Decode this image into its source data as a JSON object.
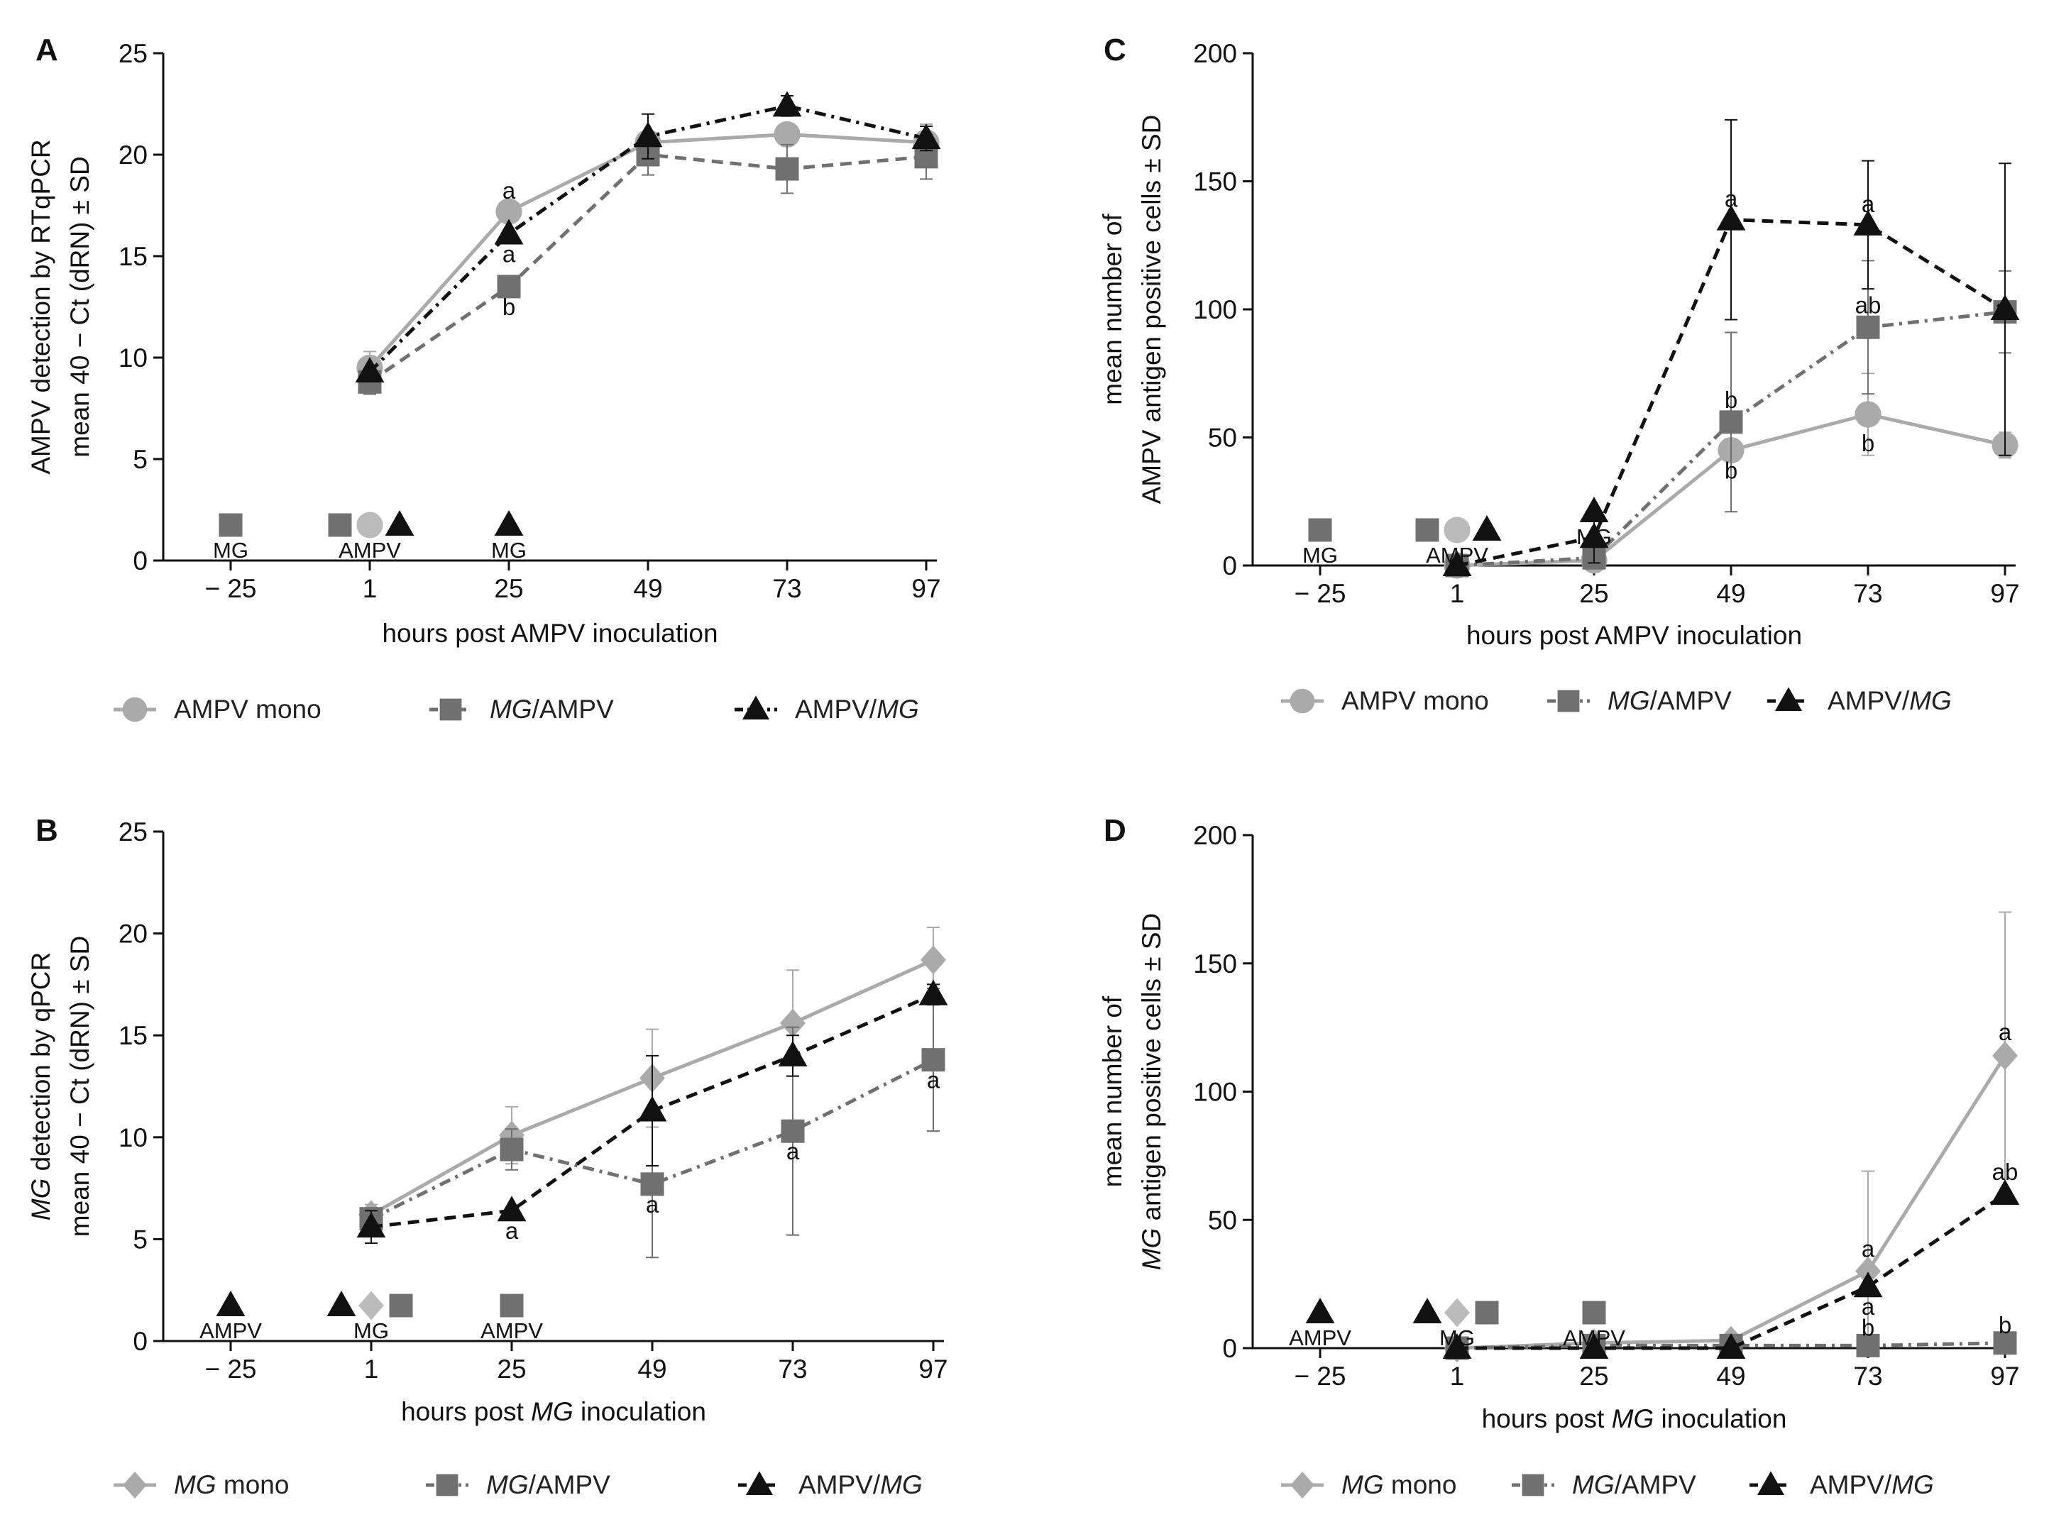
{
  "colors": {
    "mono": "#aaaaaa",
    "mg_ampv": "#707070",
    "ampv_mg": "#111111",
    "axis": "#111111"
  },
  "chart_data": [
    {
      "type": "line",
      "panel": "A",
      "xlabel": "hours post AMPV inoculation",
      "ylabel": [
        "AMPV detection by RTqPCR",
        "mean 40 − Ct (dRN) ± SD"
      ],
      "x_ticks": [
        "− 25",
        "1",
        "25",
        "49",
        "73",
        "97"
      ],
      "y_ticks": [
        "0",
        "5",
        "10",
        "15",
        "20",
        "25"
      ],
      "ylim": [
        0,
        25
      ],
      "grid": false,
      "legend_position": "bottom",
      "series": [
        {
          "name": "AMPV mono",
          "style": "solid",
          "marker": "circle",
          "color": "#aaaaaa",
          "x": [
            1,
            25,
            49,
            73,
            97
          ],
          "y": [
            9.5,
            17.2,
            20.6,
            21.0,
            20.6
          ],
          "err": [
            0.8,
            0,
            0.4,
            0.5,
            0.9
          ]
        },
        {
          "name": "MG/AMPV",
          "style": "dashed",
          "marker": "square",
          "color": "#707070",
          "x": [
            1,
            25,
            49,
            73,
            97
          ],
          "y": [
            8.8,
            13.5,
            20.0,
            19.3,
            19.9
          ],
          "err": [
            0.6,
            0,
            1.0,
            1.2,
            1.1
          ]
        },
        {
          "name": "AMPV/MG",
          "style": "dashdot",
          "marker": "triangle",
          "color": "#111111",
          "x": [
            1,
            25,
            49,
            73,
            97
          ],
          "y": [
            9.3,
            16.1,
            20.9,
            22.4,
            20.8
          ],
          "err": [
            0,
            0,
            1.1,
            0.5,
            0.6
          ]
        }
      ],
      "annotations": [
        {
          "x": 25,
          "y": 17.2,
          "text": "a",
          "dy": -18
        },
        {
          "x": 25,
          "y": 16.1,
          "text": "a",
          "dy": 40
        },
        {
          "x": 25,
          "y": 13.5,
          "text": "b",
          "dy": 40
        }
      ],
      "inoculation_markers": [
        {
          "x": -25,
          "shapes": [
            {
              "type": "square",
              "color": "#707070"
            }
          ],
          "label": "MG"
        },
        {
          "x": 1,
          "shapes": [
            {
              "type": "square",
              "color": "#707070"
            },
            {
              "type": "circle",
              "color": "#bbbbbb"
            },
            {
              "type": "triangle",
              "color": "#111111"
            }
          ],
          "label": "AMPV"
        },
        {
          "x": 25,
          "shapes": [
            {
              "type": "triangle",
              "color": "#111111"
            }
          ],
          "label": "MG"
        }
      ],
      "legend": [
        {
          "text": "AMPV mono",
          "italic": false
        },
        {
          "text": "MG",
          "italic": true,
          "rest": "/AMPV"
        },
        {
          "text": "AMPV/",
          "italic": false,
          "rest": "MG",
          "rest_italic": true
        }
      ]
    },
    {
      "type": "line",
      "panel": "B",
      "xlabel": "hours post MG inoculation",
      "ylabel": [
        "MG detection by qPCR",
        "mean 40 − Ct (dRN) ± SD"
      ],
      "x_ticks": [
        "− 25",
        "1",
        "25",
        "49",
        "73",
        "97"
      ],
      "y_ticks": [
        "0",
        "5",
        "10",
        "15",
        "20",
        "25"
      ],
      "ylim": [
        0,
        25
      ],
      "grid": false,
      "legend_position": "bottom",
      "series": [
        {
          "name": "MG mono",
          "style": "solid",
          "marker": "diamond",
          "color": "#aaaaaa",
          "x": [
            1,
            25,
            49,
            73,
            97
          ],
          "y": [
            6.2,
            10.1,
            12.9,
            15.6,
            18.7
          ],
          "err": [
            0.5,
            1.4,
            2.4,
            2.6,
            1.6
          ]
        },
        {
          "name": "MG/AMPV",
          "style": "dashdot",
          "marker": "square",
          "color": "#707070",
          "x": [
            1,
            25,
            49,
            73,
            97
          ],
          "y": [
            6.0,
            9.4,
            7.7,
            10.3,
            13.8
          ],
          "err": [
            0.4,
            1.0,
            3.6,
            5.1,
            3.5
          ]
        },
        {
          "name": "AMPV/MG",
          "style": "dashed",
          "marker": "triangle",
          "color": "#111111",
          "x": [
            1,
            25,
            49,
            73,
            97
          ],
          "y": [
            5.6,
            6.4,
            11.3,
            14.0,
            17.0
          ],
          "err": [
            0.8,
            0,
            2.7,
            1.0,
            0.5
          ]
        }
      ],
      "annotations": [
        {
          "x": 25,
          "y": 6.4,
          "text": "a",
          "dy": 40
        },
        {
          "x": 49,
          "y": 7.7,
          "text": "a",
          "dy": 40
        },
        {
          "x": 73,
          "y": 10.3,
          "text": "a",
          "dy": 40
        },
        {
          "x": 97,
          "y": 13.8,
          "text": "a",
          "dy": 40
        }
      ],
      "inoculation_markers": [
        {
          "x": -25,
          "shapes": [
            {
              "type": "triangle",
              "color": "#111111"
            }
          ],
          "label": "AMPV"
        },
        {
          "x": 1,
          "shapes": [
            {
              "type": "triangle",
              "color": "#111111"
            },
            {
              "type": "diamond",
              "color": "#bbbbbb"
            },
            {
              "type": "square",
              "color": "#707070"
            }
          ],
          "label": "MG"
        },
        {
          "x": 25,
          "shapes": [
            {
              "type": "square",
              "color": "#707070"
            }
          ],
          "label": "AMPV"
        }
      ],
      "legend": [
        {
          "text": "MG",
          "italic": true,
          "rest": " mono"
        },
        {
          "text": "MG",
          "italic": true,
          "rest": "/AMPV"
        },
        {
          "text": "AMPV/",
          "italic": false,
          "rest": "MG",
          "rest_italic": true
        }
      ]
    },
    {
      "type": "line",
      "panel": "C",
      "xlabel": "hours post AMPV inoculation",
      "ylabel": [
        "mean number of",
        "AMPV antigen positive cells ± SD"
      ],
      "x_ticks": [
        "− 25",
        "1",
        "25",
        "49",
        "73",
        "97"
      ],
      "y_ticks": [
        "0",
        "50",
        "100",
        "150",
        "200"
      ],
      "ylim": [
        0,
        200
      ],
      "grid": false,
      "legend_position": "bottom",
      "series": [
        {
          "name": "AMPV mono",
          "style": "solid",
          "marker": "circle",
          "color": "#aaaaaa",
          "x": [
            1,
            25,
            49,
            73,
            97
          ],
          "y": [
            0,
            2,
            45,
            59,
            47
          ],
          "err": [
            0,
            0,
            0,
            16,
            5
          ]
        },
        {
          "name": "MG/AMPV",
          "style": "dashdot",
          "marker": "square",
          "color": "#707070",
          "x": [
            1,
            25,
            49,
            73,
            97
          ],
          "y": [
            0,
            3,
            56,
            93,
            99
          ],
          "err": [
            0,
            0,
            35,
            26,
            16
          ]
        },
        {
          "name": "AMPV/MG",
          "style": "dashed",
          "marker": "triangle",
          "color": "#111111",
          "x": [
            1,
            25,
            49,
            73,
            97
          ],
          "y": [
            0,
            11,
            135,
            133,
            100
          ],
          "err": [
            0,
            10,
            39,
            25,
            57
          ]
        }
      ],
      "annotations": [
        {
          "x": 49,
          "y": 135,
          "text": "a",
          "dy": -18
        },
        {
          "x": 73,
          "y": 133,
          "text": "a",
          "dy": -18
        },
        {
          "x": 73,
          "y": 93,
          "text": "ab",
          "dy": -20
        },
        {
          "x": 49,
          "y": 56,
          "text": "b",
          "dy": -20
        },
        {
          "x": 49,
          "y": 45,
          "text": "b",
          "dy": 40
        },
        {
          "x": 73,
          "y": 59,
          "text": "b",
          "dy": 52
        }
      ],
      "inoculation_markers": [
        {
          "x": -25,
          "shapes": [
            {
              "type": "square",
              "color": "#707070"
            }
          ],
          "label": "MG"
        },
        {
          "x": 1,
          "shapes": [
            {
              "type": "square",
              "color": "#707070"
            },
            {
              "type": "circle",
              "color": "#bbbbbb"
            },
            {
              "type": "triangle",
              "color": "#111111"
            }
          ],
          "label": "AMPV"
        },
        {
          "x": 25,
          "shapes": [
            {
              "type": "triangle",
              "color": "#111111"
            }
          ],
          "label": "MG",
          "lift": 26
        }
      ],
      "legend": [
        {
          "text": "AMPV mono",
          "italic": false
        },
        {
          "text": "MG",
          "italic": true,
          "rest": "/AMPV"
        },
        {
          "text": "AMPV/",
          "italic": false,
          "rest": "MG",
          "rest_italic": true
        }
      ]
    },
    {
      "type": "line",
      "panel": "D",
      "xlabel": "hours post MG inoculation",
      "ylabel": [
        "mean number of",
        "MG antigen positive cells ± SD"
      ],
      "x_ticks": [
        "− 25",
        "1",
        "25",
        "49",
        "73",
        "97"
      ],
      "y_ticks": [
        "0",
        "50",
        "100",
        "150",
        "200"
      ],
      "ylim": [
        0,
        200
      ],
      "grid": false,
      "legend_position": "bottom",
      "series": [
        {
          "name": "MG mono",
          "style": "solid",
          "marker": "diamond",
          "color": "#aaaaaa",
          "x": [
            1,
            25,
            49,
            73,
            97
          ],
          "y": [
            0,
            2,
            3,
            30,
            114
          ],
          "err": [
            0,
            1,
            2,
            39,
            56
          ]
        },
        {
          "name": "MG/AMPV",
          "style": "dashdot",
          "marker": "square",
          "color": "#707070",
          "x": [
            1,
            25,
            49,
            73,
            97
          ],
          "y": [
            0,
            1,
            1,
            1,
            2
          ],
          "err": [
            0,
            0,
            0,
            0,
            0
          ]
        },
        {
          "name": "AMPV/MG",
          "style": "dashed",
          "marker": "triangle",
          "color": "#111111",
          "x": [
            1,
            25,
            49,
            73,
            97
          ],
          "y": [
            0,
            0,
            0,
            24,
            60
          ],
          "err": [
            0,
            0,
            0,
            0,
            0
          ]
        }
      ],
      "annotations": [
        {
          "x": 97,
          "y": 114,
          "text": "a",
          "dy": -22
        },
        {
          "x": 97,
          "y": 60,
          "text": "ab",
          "dy": -20
        },
        {
          "x": 97,
          "y": 2,
          "text": "b",
          "dy": -14
        },
        {
          "x": 73,
          "y": 30,
          "text": "a",
          "dy": -20
        },
        {
          "x": 73,
          "y": 24,
          "text": "a",
          "dy": 40
        },
        {
          "x": 73,
          "y": 1,
          "text": "b",
          "dy": -14
        }
      ],
      "inoculation_markers": [
        {
          "x": -25,
          "shapes": [
            {
              "type": "triangle",
              "color": "#111111"
            }
          ],
          "label": "AMPV"
        },
        {
          "x": 1,
          "shapes": [
            {
              "type": "triangle",
              "color": "#111111"
            },
            {
              "type": "diamond",
              "color": "#bbbbbb"
            },
            {
              "type": "square",
              "color": "#707070"
            }
          ],
          "label": "MG"
        },
        {
          "x": 25,
          "shapes": [
            {
              "type": "square",
              "color": "#707070"
            }
          ],
          "label": "AMPV"
        }
      ],
      "legend": [
        {
          "text": "MG",
          "italic": true,
          "rest": " mono"
        },
        {
          "text": "MG",
          "italic": true,
          "rest": "/AMPV"
        },
        {
          "text": "AMPV/",
          "italic": false,
          "rest": "MG",
          "rest_italic": true
        }
      ]
    }
  ]
}
